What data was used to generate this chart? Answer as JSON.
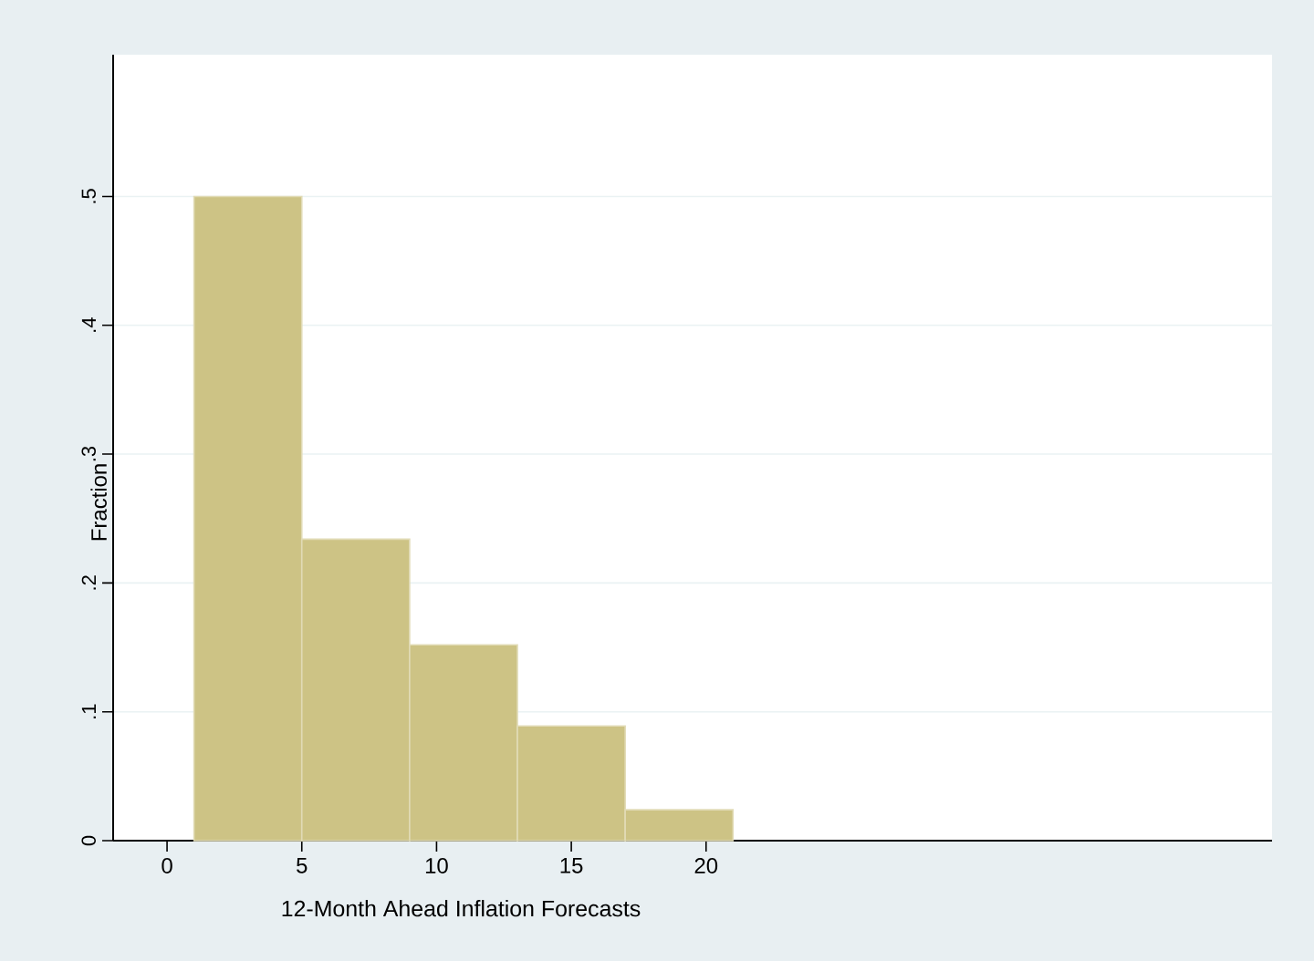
{
  "chart_data": {
    "type": "histogram",
    "xlabel": "12-Month Ahead Inflation Forecasts",
    "ylabel": "Fraction",
    "bins": [
      1,
      5,
      9,
      13,
      17,
      21
    ],
    "values": [
      0.5,
      0.234,
      0.152,
      0.089,
      0.024
    ],
    "color": "#cdc385",
    "xlim": [
      -2,
      41
    ],
    "ylim": [
      0,
      0.61
    ],
    "xticks": [
      0,
      5,
      10,
      15,
      20
    ],
    "yticks": [
      0,
      {
        "value": 0.1,
        "label": ".1"
      },
      {
        "value": 0.2,
        "label": ".2"
      },
      {
        "value": 0.3,
        "label": ".3"
      },
      {
        "value": 0.4,
        "label": ".4"
      },
      {
        "value": 0.5,
        "label": ".5"
      }
    ],
    "grid": "y"
  }
}
